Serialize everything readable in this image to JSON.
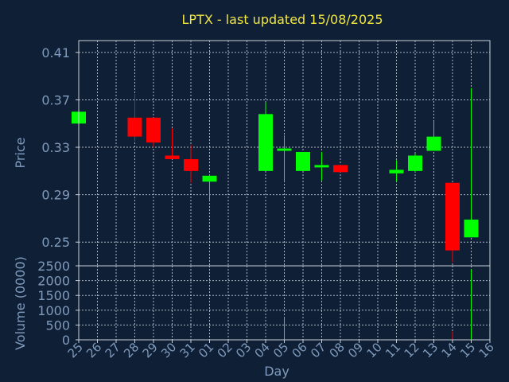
{
  "chart_data": {
    "type": "candlestick",
    "title": "LPTX - last updated 15/08/2025",
    "xlabel": "Day",
    "price_panel": {
      "ylabel": "Price",
      "ylim": [
        0.23,
        0.42
      ],
      "yticks": [
        "0.25",
        "0.29",
        "0.33",
        "0.37",
        "0.41"
      ],
      "ytick_values": [
        0.25,
        0.29,
        0.33,
        0.37,
        0.41
      ],
      "grid": true
    },
    "volume_panel": {
      "ylabel": "Volume (0000)",
      "ylim": [
        0,
        2500
      ],
      "yticks": [
        "0",
        "500",
        "1000",
        "1500",
        "2000",
        "2500"
      ],
      "ytick_values": [
        0,
        500,
        1000,
        1500,
        2000,
        2500
      ],
      "grid": true
    },
    "x_ticks": [
      "25",
      "26",
      "27",
      "28",
      "29",
      "30",
      "31",
      "01",
      "02",
      "03",
      "04",
      "05",
      "06",
      "07",
      "08",
      "09",
      "10",
      "11",
      "12",
      "13",
      "14",
      "15",
      "16"
    ],
    "colors": {
      "up": "#00ff00",
      "down": "#ff0000",
      "title": "#f2e640",
      "axis_text": "#7f9bbd",
      "background": "#0f1f35"
    },
    "candles": [
      {
        "x": 25,
        "open": 0.35,
        "high": 0.36,
        "low": 0.35,
        "close": 0.36,
        "volume": 0
      },
      {
        "x": 28,
        "open": 0.355,
        "high": 0.375,
        "low": 0.335,
        "close": 0.339,
        "volume": 0
      },
      {
        "x": 29,
        "open": 0.355,
        "high": 0.355,
        "low": 0.33,
        "close": 0.334,
        "volume": 0
      },
      {
        "x": 30,
        "open": 0.323,
        "high": 0.346,
        "low": 0.32,
        "close": 0.32,
        "volume": 0
      },
      {
        "x": 31,
        "open": 0.32,
        "high": 0.332,
        "low": 0.3,
        "close": 0.31,
        "volume": 0
      },
      {
        "x": 32,
        "open": 0.301,
        "high": 0.307,
        "low": 0.285,
        "close": 0.306,
        "volume": 0
      },
      {
        "x": 35,
        "open": 0.31,
        "high": 0.368,
        "low": 0.31,
        "close": 0.358,
        "volume": 0
      },
      {
        "x": 36,
        "open": 0.327,
        "high": 0.34,
        "low": 0.301,
        "close": 0.329,
        "volume": 780
      },
      {
        "x": 37,
        "open": 0.31,
        "high": 0.326,
        "low": 0.31,
        "close": 0.326,
        "volume": 0
      },
      {
        "x": 38,
        "open": 0.313,
        "high": 0.326,
        "low": 0.302,
        "close": 0.315,
        "volume": 0
      },
      {
        "x": 39,
        "open": 0.315,
        "high": 0.315,
        "low": 0.309,
        "close": 0.309,
        "volume": 0
      },
      {
        "x": 42,
        "open": 0.308,
        "high": 0.319,
        "low": 0.301,
        "close": 0.311,
        "volume": 0
      },
      {
        "x": 43,
        "open": 0.31,
        "high": 0.325,
        "low": 0.309,
        "close": 0.323,
        "volume": 0
      },
      {
        "x": 44,
        "open": 0.327,
        "high": 0.352,
        "low": 0.327,
        "close": 0.339,
        "volume": 0
      },
      {
        "x": 45,
        "open": 0.3,
        "high": 0.3,
        "low": 0.233,
        "close": 0.243,
        "volume": 280
      },
      {
        "x": 46,
        "open": 0.254,
        "high": 0.38,
        "low": 0.254,
        "close": 0.269,
        "volume": 2380
      }
    ]
  }
}
